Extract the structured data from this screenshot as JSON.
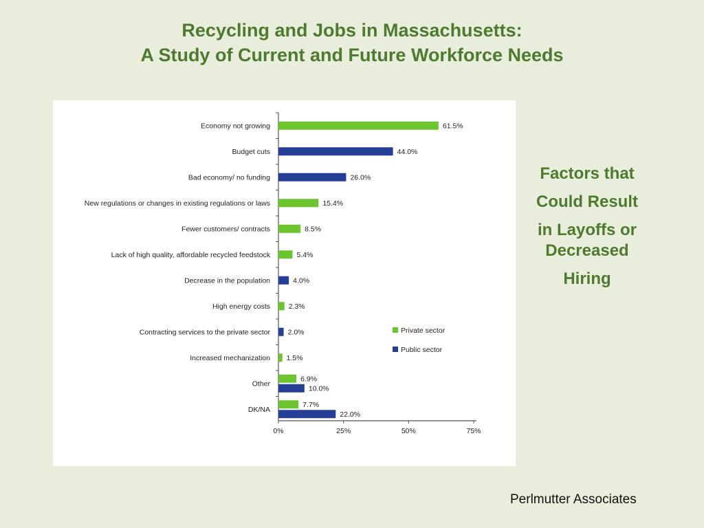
{
  "slide": {
    "title_line1": "Recycling and Jobs in Massachusetts:",
    "title_line2": "A Study of Current and Future Workforce Needs",
    "side_lines": [
      "Factors that",
      "Could Result",
      "in Layoffs or",
      "Decreased",
      "Hiring"
    ],
    "footer": "Perlmutter Associates"
  },
  "chart_data": {
    "type": "bar",
    "orientation": "horizontal",
    "title": "",
    "xlabel": "",
    "ylabel": "",
    "xlim": [
      0,
      75
    ],
    "x_ticks": [
      "0%",
      "25%",
      "50%",
      "75%"
    ],
    "grid": false,
    "legend_position": "right",
    "categories": [
      "Economy not growing",
      "Budget cuts",
      "Bad economy/ no funding",
      "New regulations or changes in existing regulations or laws",
      "Fewer customers/ contracts",
      "Lack of high quality, affordable recycled feedstock",
      "Decrease in the population",
      "High energy costs",
      "Contracting services to the private sector",
      "Increased mechanization",
      "Other",
      "DK/NA"
    ],
    "series": [
      {
        "name": "Private sector",
        "color": "#6cc52f",
        "values": [
          61.5,
          null,
          null,
          15.4,
          8.5,
          5.4,
          null,
          2.3,
          null,
          1.5,
          6.9,
          7.7
        ],
        "labels": [
          "61.5%",
          "",
          "",
          "15.4%",
          "8.5%",
          "5.4%",
          "",
          "2.3%",
          "",
          "1.5%",
          "6.9%",
          "7.7%"
        ]
      },
      {
        "name": "Public sector",
        "color": "#263f96",
        "values": [
          null,
          44.0,
          26.0,
          null,
          null,
          null,
          4.0,
          null,
          2.0,
          null,
          10.0,
          22.0
        ],
        "labels": [
          "",
          "44.0%",
          "26.0%",
          "",
          "",
          "",
          "4.0%",
          "",
          "2.0%",
          "",
          "10.0%",
          "22.0%"
        ]
      }
    ]
  }
}
